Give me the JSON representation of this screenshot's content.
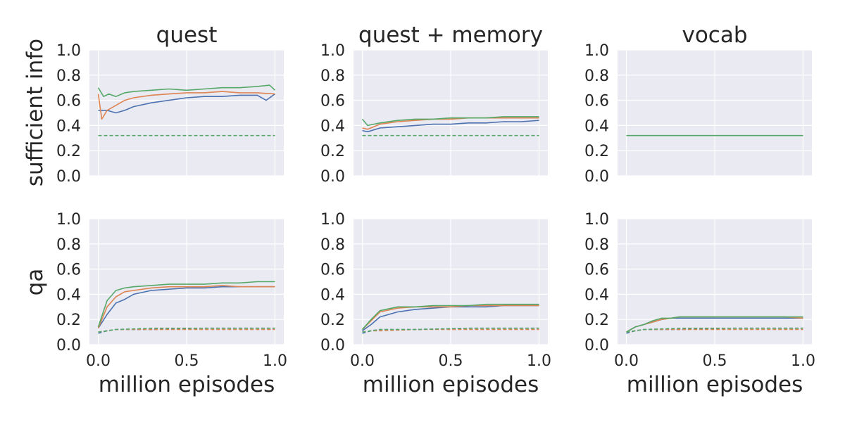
{
  "figure": {
    "columns": [
      "quest",
      "quest + memory",
      "vocab"
    ],
    "rows": [
      "sufficient info",
      "qa"
    ],
    "xlabel": "million episodes",
    "yticks": [
      "0.0",
      "0.2",
      "0.4",
      "0.6",
      "0.8",
      "1.0"
    ],
    "xticks": [
      "0.0",
      "0.5",
      "1.0"
    ]
  },
  "chart_data": [
    {
      "type": "line",
      "title": "quest",
      "ylabel": "sufficient info",
      "xlabel": "",
      "xlim": [
        -0.05,
        1.05
      ],
      "ylim": [
        0.0,
        1.0
      ],
      "grid": true,
      "series": [
        {
          "color": "#4c72b0",
          "style": "solid",
          "x": [
            0.0,
            0.05,
            0.1,
            0.15,
            0.2,
            0.3,
            0.4,
            0.5,
            0.6,
            0.7,
            0.8,
            0.9,
            0.95,
            1.0
          ],
          "y": [
            0.52,
            0.52,
            0.5,
            0.52,
            0.55,
            0.58,
            0.6,
            0.62,
            0.63,
            0.63,
            0.64,
            0.64,
            0.6,
            0.65
          ]
        },
        {
          "color": "#dd8452",
          "style": "solid",
          "x": [
            0.0,
            0.02,
            0.05,
            0.1,
            0.15,
            0.2,
            0.3,
            0.4,
            0.5,
            0.6,
            0.7,
            0.8,
            0.9,
            1.0
          ],
          "y": [
            0.65,
            0.45,
            0.52,
            0.56,
            0.6,
            0.62,
            0.64,
            0.65,
            0.66,
            0.66,
            0.67,
            0.66,
            0.66,
            0.65
          ]
        },
        {
          "color": "#55a868",
          "style": "solid",
          "x": [
            0.0,
            0.03,
            0.06,
            0.1,
            0.15,
            0.2,
            0.3,
            0.4,
            0.5,
            0.6,
            0.7,
            0.8,
            0.9,
            0.97,
            1.0
          ],
          "y": [
            0.7,
            0.63,
            0.65,
            0.63,
            0.66,
            0.67,
            0.68,
            0.69,
            0.68,
            0.69,
            0.7,
            0.7,
            0.71,
            0.72,
            0.68
          ]
        },
        {
          "color": "#55a868",
          "style": "dashed",
          "x": [
            0.0,
            1.0
          ],
          "y": [
            0.32,
            0.32
          ]
        }
      ]
    },
    {
      "type": "line",
      "title": "quest + memory",
      "ylabel": "",
      "xlabel": "",
      "xlim": [
        -0.05,
        1.05
      ],
      "ylim": [
        0.0,
        1.0
      ],
      "grid": true,
      "series": [
        {
          "color": "#4c72b0",
          "style": "solid",
          "x": [
            0.0,
            0.03,
            0.1,
            0.2,
            0.3,
            0.4,
            0.5,
            0.6,
            0.7,
            0.8,
            0.9,
            1.0
          ],
          "y": [
            0.36,
            0.35,
            0.38,
            0.39,
            0.4,
            0.41,
            0.41,
            0.42,
            0.42,
            0.43,
            0.43,
            0.44
          ]
        },
        {
          "color": "#dd8452",
          "style": "solid",
          "x": [
            0.0,
            0.03,
            0.1,
            0.2,
            0.3,
            0.4,
            0.5,
            0.6,
            0.7,
            0.8,
            0.9,
            1.0
          ],
          "y": [
            0.38,
            0.37,
            0.41,
            0.43,
            0.44,
            0.45,
            0.45,
            0.46,
            0.46,
            0.46,
            0.46,
            0.46
          ]
        },
        {
          "color": "#55a868",
          "style": "solid",
          "x": [
            0.0,
            0.03,
            0.1,
            0.2,
            0.3,
            0.4,
            0.5,
            0.6,
            0.7,
            0.8,
            0.9,
            1.0
          ],
          "y": [
            0.45,
            0.4,
            0.42,
            0.44,
            0.45,
            0.45,
            0.46,
            0.46,
            0.46,
            0.47,
            0.47,
            0.47
          ]
        },
        {
          "color": "#55a868",
          "style": "dashed",
          "x": [
            0.0,
            1.0
          ],
          "y": [
            0.32,
            0.32
          ]
        }
      ]
    },
    {
      "type": "line",
      "title": "vocab",
      "ylabel": "",
      "xlabel": "",
      "xlim": [
        -0.05,
        1.05
      ],
      "ylim": [
        0.0,
        1.0
      ],
      "grid": true,
      "series": [
        {
          "color": "#55a868",
          "style": "solid",
          "x": [
            0.0,
            1.0
          ],
          "y": [
            0.32,
            0.32
          ]
        }
      ]
    },
    {
      "type": "line",
      "title": "",
      "ylabel": "qa",
      "xlabel": "million episodes",
      "xlim": [
        -0.05,
        1.05
      ],
      "ylim": [
        0.0,
        1.0
      ],
      "grid": true,
      "series": [
        {
          "color": "#4c72b0",
          "style": "solid",
          "x": [
            0.0,
            0.05,
            0.1,
            0.15,
            0.2,
            0.3,
            0.4,
            0.5,
            0.6,
            0.7,
            0.8,
            0.9,
            1.0
          ],
          "y": [
            0.13,
            0.24,
            0.33,
            0.36,
            0.4,
            0.43,
            0.44,
            0.45,
            0.45,
            0.46,
            0.46,
            0.46,
            0.46
          ]
        },
        {
          "color": "#dd8452",
          "style": "solid",
          "x": [
            0.0,
            0.05,
            0.1,
            0.15,
            0.2,
            0.3,
            0.4,
            0.5,
            0.6,
            0.7,
            0.8,
            0.9,
            1.0
          ],
          "y": [
            0.13,
            0.3,
            0.38,
            0.42,
            0.43,
            0.45,
            0.46,
            0.46,
            0.46,
            0.47,
            0.46,
            0.46,
            0.46
          ]
        },
        {
          "color": "#55a868",
          "style": "solid",
          "x": [
            0.0,
            0.05,
            0.1,
            0.15,
            0.2,
            0.3,
            0.4,
            0.5,
            0.6,
            0.7,
            0.8,
            0.9,
            1.0
          ],
          "y": [
            0.14,
            0.35,
            0.43,
            0.45,
            0.46,
            0.47,
            0.48,
            0.48,
            0.48,
            0.49,
            0.49,
            0.5,
            0.5
          ]
        },
        {
          "color": "#4c72b0",
          "style": "dashed",
          "x": [
            0.0,
            0.05,
            0.1,
            0.3,
            0.6,
            1.0
          ],
          "y": [
            0.09,
            0.11,
            0.12,
            0.12,
            0.13,
            0.13
          ]
        },
        {
          "color": "#dd8452",
          "style": "dashed",
          "x": [
            0.0,
            0.05,
            0.1,
            0.3,
            0.6,
            1.0
          ],
          "y": [
            0.1,
            0.11,
            0.12,
            0.12,
            0.12,
            0.12
          ]
        },
        {
          "color": "#55a868",
          "style": "dashed",
          "x": [
            0.0,
            0.05,
            0.1,
            0.3,
            0.6,
            1.0
          ],
          "y": [
            0.1,
            0.11,
            0.12,
            0.13,
            0.13,
            0.13
          ]
        }
      ]
    },
    {
      "type": "line",
      "title": "",
      "ylabel": "",
      "xlabel": "million episodes",
      "xlim": [
        -0.05,
        1.05
      ],
      "ylim": [
        0.0,
        1.0
      ],
      "grid": true,
      "series": [
        {
          "color": "#4c72b0",
          "style": "solid",
          "x": [
            0.0,
            0.05,
            0.1,
            0.2,
            0.3,
            0.4,
            0.5,
            0.6,
            0.7,
            0.8,
            0.9,
            1.0
          ],
          "y": [
            0.11,
            0.16,
            0.22,
            0.26,
            0.28,
            0.29,
            0.3,
            0.3,
            0.3,
            0.31,
            0.31,
            0.31
          ]
        },
        {
          "color": "#dd8452",
          "style": "solid",
          "x": [
            0.0,
            0.05,
            0.1,
            0.2,
            0.3,
            0.4,
            0.5,
            0.6,
            0.7,
            0.8,
            0.9,
            1.0
          ],
          "y": [
            0.12,
            0.19,
            0.26,
            0.29,
            0.3,
            0.3,
            0.3,
            0.31,
            0.31,
            0.31,
            0.31,
            0.31
          ]
        },
        {
          "color": "#55a868",
          "style": "solid",
          "x": [
            0.0,
            0.05,
            0.1,
            0.2,
            0.3,
            0.4,
            0.5,
            0.6,
            0.7,
            0.8,
            0.9,
            1.0
          ],
          "y": [
            0.12,
            0.2,
            0.27,
            0.3,
            0.3,
            0.31,
            0.31,
            0.31,
            0.32,
            0.32,
            0.32,
            0.32
          ]
        },
        {
          "color": "#4c72b0",
          "style": "dashed",
          "x": [
            0.0,
            0.05,
            0.1,
            0.3,
            0.6,
            1.0
          ],
          "y": [
            0.09,
            0.11,
            0.12,
            0.12,
            0.13,
            0.13
          ]
        },
        {
          "color": "#dd8452",
          "style": "dashed",
          "x": [
            0.0,
            0.05,
            0.1,
            0.3,
            0.6,
            1.0
          ],
          "y": [
            0.1,
            0.11,
            0.11,
            0.12,
            0.12,
            0.12
          ]
        },
        {
          "color": "#55a868",
          "style": "dashed",
          "x": [
            0.0,
            0.05,
            0.1,
            0.3,
            0.6,
            1.0
          ],
          "y": [
            0.1,
            0.11,
            0.12,
            0.12,
            0.13,
            0.13
          ]
        }
      ]
    },
    {
      "type": "line",
      "title": "",
      "ylabel": "",
      "xlabel": "million episodes",
      "xlim": [
        -0.05,
        1.05
      ],
      "ylim": [
        0.0,
        1.0
      ],
      "grid": true,
      "series": [
        {
          "color": "#4c72b0",
          "style": "solid",
          "x": [
            0.0,
            0.05,
            0.1,
            0.15,
            0.2,
            0.25,
            0.3,
            0.4,
            0.5,
            0.6,
            0.7,
            0.8,
            0.9,
            1.0
          ],
          "y": [
            0.1,
            0.14,
            0.16,
            0.18,
            0.2,
            0.21,
            0.21,
            0.21,
            0.21,
            0.21,
            0.21,
            0.21,
            0.21,
            0.21
          ]
        },
        {
          "color": "#dd8452",
          "style": "solid",
          "x": [
            0.0,
            0.05,
            0.1,
            0.15,
            0.2,
            0.25,
            0.3,
            0.4,
            0.5,
            0.6,
            0.7,
            0.8,
            0.9,
            1.0
          ],
          "y": [
            0.1,
            0.14,
            0.16,
            0.18,
            0.2,
            0.21,
            0.22,
            0.22,
            0.22,
            0.22,
            0.22,
            0.22,
            0.22,
            0.21
          ]
        },
        {
          "color": "#55a868",
          "style": "solid",
          "x": [
            0.0,
            0.05,
            0.1,
            0.15,
            0.2,
            0.25,
            0.3,
            0.4,
            0.5,
            0.6,
            0.7,
            0.8,
            0.9,
            1.0
          ],
          "y": [
            0.1,
            0.14,
            0.16,
            0.19,
            0.21,
            0.21,
            0.22,
            0.22,
            0.22,
            0.22,
            0.22,
            0.22,
            0.22,
            0.22
          ]
        },
        {
          "color": "#4c72b0",
          "style": "dashed",
          "x": [
            0.0,
            0.05,
            0.1,
            0.3,
            0.6,
            1.0
          ],
          "y": [
            0.09,
            0.11,
            0.12,
            0.12,
            0.13,
            0.13
          ]
        },
        {
          "color": "#dd8452",
          "style": "dashed",
          "x": [
            0.0,
            0.05,
            0.1,
            0.3,
            0.6,
            1.0
          ],
          "y": [
            0.1,
            0.11,
            0.12,
            0.12,
            0.12,
            0.12
          ]
        },
        {
          "color": "#55a868",
          "style": "dashed",
          "x": [
            0.0,
            0.05,
            0.1,
            0.3,
            0.6,
            1.0
          ],
          "y": [
            0.1,
            0.11,
            0.12,
            0.13,
            0.13,
            0.13
          ]
        }
      ]
    }
  ]
}
